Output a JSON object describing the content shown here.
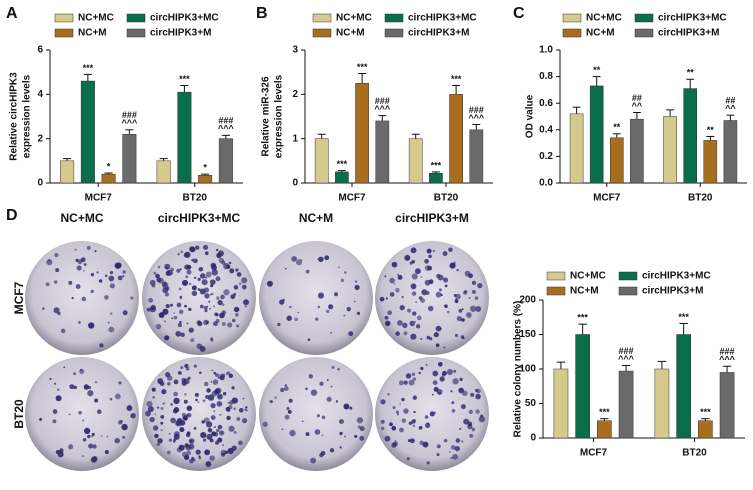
{
  "chart_data": [
    {
      "type": "bar",
      "panel": "A",
      "ylabel": [
        "Relative circHIPK3",
        "expression levels"
      ],
      "categories": [
        "MCF7",
        "BT20"
      ],
      "ylim": [
        0,
        6
      ],
      "yticks": [
        0,
        2,
        4,
        6
      ],
      "series": [
        {
          "name": "NC+MC",
          "color": "#d6c98e",
          "values": [
            1.0,
            1.0
          ],
          "errors": [
            0.1,
            0.1
          ],
          "annotations": [
            null,
            null
          ]
        },
        {
          "name": "circHIPK3+MC",
          "color": "#0b6e4b",
          "values": [
            4.6,
            4.1
          ],
          "errors": [
            0.3,
            0.3
          ],
          "annotations": [
            [
              "***"
            ],
            [
              "***"
            ]
          ]
        },
        {
          "name": "NC+M",
          "color": "#a86d1f",
          "values": [
            0.4,
            0.35
          ],
          "errors": [
            0.05,
            0.05
          ],
          "annotations": [
            [
              "*"
            ],
            [
              "*"
            ]
          ]
        },
        {
          "name": "circHIPK3+M",
          "color": "#6a6a6a",
          "values": [
            2.2,
            2.0
          ],
          "errors": [
            0.2,
            0.15
          ],
          "annotations": [
            [
              "###",
              "^^^"
            ],
            [
              "###",
              "^^^"
            ]
          ]
        }
      ]
    },
    {
      "type": "bar",
      "panel": "B",
      "ylabel": [
        "Relative miR-326",
        "expression levels"
      ],
      "categories": [
        "MCF7",
        "BT20"
      ],
      "ylim": [
        0,
        3
      ],
      "yticks": [
        0,
        1,
        2,
        3
      ],
      "series": [
        {
          "name": "NC+MC",
          "color": "#d6c98e",
          "values": [
            1.0,
            1.0
          ],
          "errors": [
            0.1,
            0.1
          ],
          "annotations": [
            null,
            null
          ]
        },
        {
          "name": "circHIPK3+MC",
          "color": "#0b6e4b",
          "values": [
            0.25,
            0.22
          ],
          "errors": [
            0.03,
            0.03
          ],
          "annotations": [
            [
              "***"
            ],
            [
              "***"
            ]
          ]
        },
        {
          "name": "NC+M",
          "color": "#a86d1f",
          "values": [
            2.25,
            2.0
          ],
          "errors": [
            0.22,
            0.2
          ],
          "annotations": [
            [
              "***"
            ],
            [
              "***"
            ]
          ]
        },
        {
          "name": "circHIPK3+M",
          "color": "#6a6a6a",
          "values": [
            1.4,
            1.2
          ],
          "errors": [
            0.12,
            0.12
          ],
          "annotations": [
            [
              "###",
              "^^^"
            ],
            [
              "###",
              "^^^"
            ]
          ]
        }
      ]
    },
    {
      "type": "bar",
      "panel": "C",
      "ylabel": [
        "OD value"
      ],
      "categories": [
        "MCF7",
        "BT20"
      ],
      "ylim": [
        0,
        1.0
      ],
      "yticks": [
        {
          "value": 0,
          "label": "0.0"
        },
        0.2,
        0.4,
        0.6,
        0.8,
        {
          "value": 1.0,
          "label": "1.0"
        }
      ],
      "series": [
        {
          "name": "NC+MC",
          "color": "#d6c98e",
          "values": [
            0.52,
            0.5
          ],
          "errors": [
            0.05,
            0.05
          ],
          "annotations": [
            null,
            null
          ]
        },
        {
          "name": "circHIPK3+MC",
          "color": "#0b6e4b",
          "values": [
            0.73,
            0.71
          ],
          "errors": [
            0.07,
            0.07
          ],
          "annotations": [
            [
              "**"
            ],
            [
              "**"
            ]
          ]
        },
        {
          "name": "NC+M",
          "color": "#a86d1f",
          "values": [
            0.34,
            0.32
          ],
          "errors": [
            0.03,
            0.03
          ],
          "annotations": [
            [
              "**"
            ],
            [
              "**"
            ]
          ]
        },
        {
          "name": "circHIPK3+M",
          "color": "#6a6a6a",
          "values": [
            0.48,
            0.47
          ],
          "errors": [
            0.05,
            0.04
          ],
          "annotations": [
            [
              "##",
              "^^"
            ],
            [
              "##",
              "^^"
            ]
          ]
        }
      ]
    },
    {
      "type": "bar",
      "ylabel": [
        "Relative colony numbers (%)"
      ],
      "categories": [
        "MCF7",
        "BT20"
      ],
      "ylim": [
        0,
        200
      ],
      "yticks": [
        0,
        50,
        100,
        150,
        200
      ],
      "series": [
        {
          "name": "NC+MC",
          "color": "#d6c98e",
          "values": [
            100,
            100
          ],
          "errors": [
            10,
            11
          ],
          "annotations": [
            null,
            null
          ]
        },
        {
          "name": "circHIPK3+MC",
          "color": "#0b6e4b",
          "values": [
            150,
            150
          ],
          "errors": [
            15,
            16
          ],
          "annotations": [
            [
              "***"
            ],
            [
              "***"
            ]
          ]
        },
        {
          "name": "NC+M",
          "color": "#a86d1f",
          "values": [
            25,
            25
          ],
          "errors": [
            3,
            3
          ],
          "annotations": [
            [
              "***"
            ],
            [
              "***"
            ]
          ]
        },
        {
          "name": "circHIPK3+M",
          "color": "#6a6a6a",
          "values": [
            97,
            95
          ],
          "errors": [
            8,
            9
          ],
          "annotations": [
            [
              "###",
              "^^^"
            ],
            [
              "###",
              "^^^"
            ]
          ]
        }
      ]
    }
  ],
  "colony_images": {
    "panel": "D",
    "columns": [
      "NC+MC",
      "circHIPK3+MC",
      "NC+M",
      "circHIPK3+M"
    ],
    "rows": [
      "MCF7",
      "BT20"
    ]
  }
}
